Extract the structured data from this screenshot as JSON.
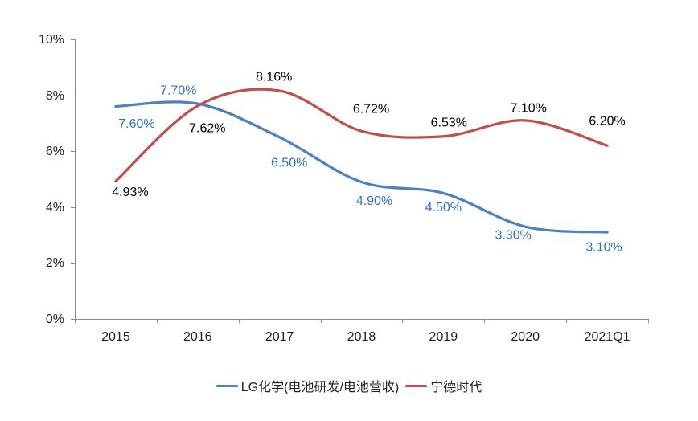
{
  "chart_data": {
    "type": "line",
    "smooth": true,
    "grid": false,
    "legend_position": "bottom",
    "title": "",
    "xlabel": "",
    "ylabel": "",
    "categories": [
      "2015",
      "2016",
      "2017",
      "2018",
      "2019",
      "2020",
      "2021Q1"
    ],
    "series": [
      {
        "name": "LG化学(电池研发/电池营收)",
        "color": "#4F81BD",
        "label_color": "#2E75B6",
        "values": [
          7.6,
          7.7,
          6.5,
          4.9,
          4.5,
          3.3,
          3.1
        ],
        "labels": [
          "7.60%",
          "7.70%",
          "6.50%",
          "4.90%",
          "4.50%",
          "3.30%",
          "3.10%"
        ],
        "label_offsets": [
          [
            26,
            22
          ],
          [
            -24,
            -16
          ],
          [
            12,
            32
          ],
          [
            16,
            24
          ],
          [
            0,
            18
          ],
          [
            -15,
            11
          ],
          [
            -4,
            19
          ]
        ]
      },
      {
        "name": "宁德时代",
        "color": "#C0504D",
        "label_color": "#000000",
        "values": [
          4.93,
          7.62,
          8.16,
          6.72,
          6.53,
          7.1,
          6.2
        ],
        "labels": [
          "4.93%",
          "7.62%",
          "8.16%",
          "6.72%",
          "6.53%",
          "7.10%",
          "6.20%"
        ],
        "label_offsets": [
          [
            18,
            14
          ],
          [
            12,
            28
          ],
          [
            -7,
            -17
          ],
          [
            12,
            -27
          ],
          [
            7,
            -17
          ],
          [
            4,
            -15
          ],
          [
            0,
            -30
          ]
        ]
      }
    ],
    "y_axis": {
      "min": 0,
      "max": 10,
      "tick_values": [
        0,
        2,
        4,
        6,
        8,
        10
      ],
      "ticks": [
        "0%",
        "2%",
        "4%",
        "6%",
        "8%",
        "10%"
      ]
    },
    "axis_color": "#8A8A8A",
    "text_color": "#1f1f1f"
  }
}
